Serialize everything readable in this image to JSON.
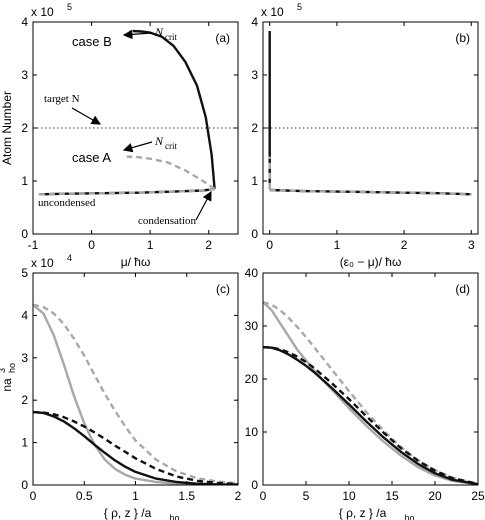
{
  "chart_data": [
    {
      "panel": "(a)",
      "type": "line",
      "panel_label": "(a)",
      "xlabel": "μ/ ħω",
      "ylabel": "Atom Number",
      "y_exponent": "x 10",
      "y_exponent_power": "5",
      "xlim": [
        -1,
        2.5
      ],
      "ylim": [
        0,
        4
      ],
      "xticks": [
        -1,
        0,
        1,
        2
      ],
      "xtick_labels": [
        "-1",
        "0",
        "1",
        "2"
      ],
      "yticks": [
        0,
        1,
        2,
        3,
        4
      ],
      "ytick_labels": [
        "0",
        "1",
        "2",
        "3",
        "4"
      ],
      "grid": false,
      "annotations": {
        "case_b": "case B",
        "case_a": "case A",
        "n_crit": "N",
        "n_crit_sub": "crit",
        "target": "target N",
        "uncondensed": "uncondensed",
        "condensation": "condensation"
      },
      "series": [
        {
          "style": "solid-black",
          "x": [
            -0.9,
            -0.4,
            0.2,
            0.8,
            1.4,
            1.9,
            2.1
          ],
          "y": [
            0.75,
            0.76,
            0.77,
            0.78,
            0.8,
            0.82,
            0.85
          ]
        },
        {
          "style": "solid-black",
          "x": [
            2.1,
            2.05,
            1.95,
            1.8,
            1.6,
            1.4,
            1.2,
            1.0,
            0.85,
            0.7
          ],
          "y": [
            0.85,
            1.5,
            2.2,
            2.8,
            3.25,
            3.55,
            3.72,
            3.8,
            3.82,
            3.83
          ]
        },
        {
          "style": "dashed-gray",
          "x": [
            -0.9,
            -0.4,
            0.2,
            0.8,
            1.4,
            1.9,
            2.1
          ],
          "y": [
            0.75,
            0.76,
            0.77,
            0.78,
            0.8,
            0.82,
            0.85
          ]
        },
        {
          "style": "dashed-gray",
          "x": [
            2.1,
            1.9,
            1.6,
            1.3,
            1.0,
            0.8,
            0.6
          ],
          "y": [
            0.85,
            1.0,
            1.2,
            1.35,
            1.42,
            1.45,
            1.46
          ]
        },
        {
          "style": "dotted-black",
          "x": [
            -1,
            2.5
          ],
          "y": [
            2,
            2
          ]
        }
      ]
    },
    {
      "panel": "(b)",
      "type": "line",
      "panel_label": "(b)",
      "xlabel": "(ε₀ − μ)/ ħω",
      "y_exponent": "x 10",
      "y_exponent_power": "5",
      "xlim": [
        -0.1,
        3.1
      ],
      "ylim": [
        0,
        4
      ],
      "xticks": [
        0,
        1,
        2,
        3
      ],
      "xtick_labels": [
        "0",
        "1",
        "2",
        "3"
      ],
      "yticks": [
        0,
        1,
        2,
        3,
        4
      ],
      "ytick_labels": [
        "0",
        "1",
        "2",
        "3",
        "4"
      ],
      "grid": false,
      "series": [
        {
          "style": "solid-black",
          "x": [
            0.0,
            0.0
          ],
          "y": [
            0.85,
            3.83
          ]
        },
        {
          "style": "solid-black",
          "x": [
            0.0,
            0.5,
            1.0,
            1.5,
            2.0,
            2.5,
            3.0
          ],
          "y": [
            0.83,
            0.81,
            0.8,
            0.79,
            0.78,
            0.77,
            0.75
          ]
        },
        {
          "style": "dashed-gray",
          "x": [
            0.0,
            0.0
          ],
          "y": [
            0.85,
            1.46
          ]
        },
        {
          "style": "dashed-gray",
          "x": [
            0.0,
            0.5,
            1.0,
            1.5,
            2.0,
            2.5,
            3.0
          ],
          "y": [
            0.83,
            0.81,
            0.8,
            0.79,
            0.78,
            0.77,
            0.75
          ]
        },
        {
          "style": "dotted-black",
          "x": [
            -0.1,
            3.1
          ],
          "y": [
            2,
            2
          ]
        }
      ]
    },
    {
      "panel": "(c)",
      "type": "line",
      "panel_label": "(c)",
      "xlabel": "{ ρ, z } /a",
      "xlabel_sub": "ho",
      "ylabel": "na",
      "ylabel_sup": "3",
      "ylabel_sub": "ho",
      "y_exponent": "x 10",
      "y_exponent_power": "4",
      "xlim": [
        0,
        2
      ],
      "ylim": [
        0,
        5
      ],
      "xticks": [
        0,
        0.5,
        1,
        1.5,
        2
      ],
      "xtick_labels": [
        "0",
        "0.5",
        "1",
        "1.5",
        "2"
      ],
      "yticks": [
        0,
        1,
        2,
        3,
        4,
        5
      ],
      "ytick_labels": [
        "0",
        "1",
        "2",
        "3",
        "4",
        "5"
      ],
      "grid": false,
      "series": [
        {
          "style": "solid-gray",
          "x": [
            0,
            0.1,
            0.2,
            0.3,
            0.4,
            0.5,
            0.6,
            0.7,
            0.8,
            0.9,
            1.0,
            1.2,
            1.4,
            1.6,
            1.8,
            2.0
          ],
          "y": [
            4.25,
            4.05,
            3.55,
            2.85,
            2.1,
            1.45,
            0.95,
            0.6,
            0.38,
            0.24,
            0.15,
            0.07,
            0.03,
            0.015,
            0.01,
            0.01
          ]
        },
        {
          "style": "dashed-gray",
          "x": [
            0,
            0.1,
            0.2,
            0.3,
            0.4,
            0.5,
            0.6,
            0.7,
            0.8,
            0.9,
            1.0,
            1.2,
            1.4,
            1.6,
            1.8,
            2.0
          ],
          "y": [
            4.25,
            4.2,
            4.05,
            3.8,
            3.45,
            3.05,
            2.6,
            2.15,
            1.75,
            1.38,
            1.05,
            0.6,
            0.32,
            0.16,
            0.08,
            0.04
          ]
        },
        {
          "style": "solid-black",
          "x": [
            0,
            0.1,
            0.2,
            0.3,
            0.4,
            0.5,
            0.6,
            0.7,
            0.8,
            0.9,
            1.0,
            1.2,
            1.4,
            1.6,
            1.8,
            2.0
          ],
          "y": [
            1.72,
            1.7,
            1.62,
            1.5,
            1.34,
            1.15,
            0.95,
            0.76,
            0.58,
            0.43,
            0.31,
            0.15,
            0.07,
            0.03,
            0.015,
            0.01
          ]
        },
        {
          "style": "dashed-black",
          "x": [
            0,
            0.1,
            0.2,
            0.3,
            0.4,
            0.5,
            0.6,
            0.7,
            0.8,
            0.9,
            1.0,
            1.2,
            1.4,
            1.6,
            1.8,
            2.0
          ],
          "y": [
            1.72,
            1.71,
            1.67,
            1.6,
            1.5,
            1.38,
            1.24,
            1.09,
            0.93,
            0.78,
            0.63,
            0.38,
            0.2,
            0.1,
            0.05,
            0.02
          ]
        }
      ]
    },
    {
      "panel": "(d)",
      "type": "line",
      "panel_label": "(d)",
      "xlabel": "{ ρ, z } /a",
      "xlabel_sub": "ho",
      "xlim": [
        0,
        25
      ],
      "ylim": [
        0,
        40
      ],
      "xticks": [
        0,
        5,
        10,
        15,
        20,
        25
      ],
      "xtick_labels": [
        "0",
        "5",
        "10",
        "15",
        "20",
        "25"
      ],
      "yticks": [
        0,
        10,
        20,
        30,
        40
      ],
      "ytick_labels": [
        "0",
        "10",
        "20",
        "30",
        "40"
      ],
      "grid": false,
      "series": [
        {
          "style": "solid-gray",
          "x": [
            0,
            1,
            2,
            3,
            4,
            5,
            6,
            8,
            10,
            12,
            14,
            16,
            18,
            20,
            22,
            25
          ],
          "y": [
            34.5,
            33.0,
            30.5,
            28.0,
            25.5,
            23.5,
            21.5,
            18.0,
            14.5,
            11.2,
            8.2,
            5.6,
            3.4,
            1.8,
            0.8,
            0.1
          ]
        },
        {
          "style": "dashed-gray",
          "x": [
            0,
            1,
            2,
            3,
            4,
            5,
            6,
            8,
            10,
            12,
            14,
            16,
            18,
            20,
            22,
            25
          ],
          "y": [
            34.5,
            34.0,
            33.0,
            31.5,
            29.8,
            27.9,
            25.9,
            21.8,
            17.7,
            13.8,
            10.3,
            7.2,
            4.7,
            2.8,
            1.4,
            0.2
          ]
        },
        {
          "style": "solid-black",
          "x": [
            0,
            1,
            2,
            3,
            4,
            5,
            6,
            8,
            10,
            12,
            14,
            16,
            18,
            20,
            22,
            25
          ],
          "y": [
            26.0,
            25.9,
            25.4,
            24.6,
            23.6,
            22.5,
            21.2,
            18.3,
            15.2,
            12.0,
            9.0,
            6.3,
            4.0,
            2.2,
            1.0,
            0.15
          ]
        },
        {
          "style": "dashed-black",
          "x": [
            0,
            1,
            2,
            3,
            4,
            5,
            6,
            8,
            10,
            12,
            14,
            16,
            18,
            20,
            22,
            25
          ],
          "y": [
            26.0,
            25.95,
            25.6,
            25.0,
            24.2,
            23.2,
            22.0,
            19.2,
            16.2,
            13.0,
            9.9,
            7.0,
            4.6,
            2.7,
            1.3,
            0.2
          ]
        }
      ]
    }
  ]
}
